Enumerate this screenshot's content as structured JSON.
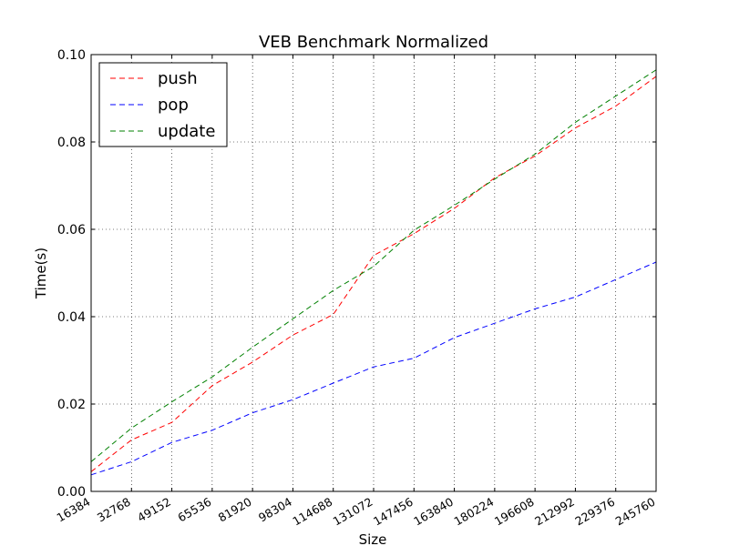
{
  "chart_data": {
    "type": "line",
    "title": "VEB Benchmark Normalized",
    "xlabel": "Size",
    "ylabel": "Time(s)",
    "x": [
      16384,
      32768,
      49152,
      65536,
      81920,
      98304,
      114688,
      131072,
      147456,
      163840,
      180224,
      196608,
      212992,
      229376,
      245760
    ],
    "x_tick_labels": [
      "16384",
      "32768",
      "49152",
      "65536",
      "81920",
      "98304",
      "114688",
      "131072",
      "147456",
      "163840",
      "180224",
      "196608",
      "212992",
      "229376",
      "245760"
    ],
    "xlim": [
      16384,
      245760
    ],
    "ylim": [
      0.0,
      0.1
    ],
    "y_ticks": [
      0.0,
      0.02,
      0.04,
      0.06,
      0.08,
      0.1
    ],
    "y_tick_labels": [
      "0.00",
      "0.02",
      "0.04",
      "0.06",
      "0.08",
      "0.10"
    ],
    "grid": true,
    "legend_position": "top-left",
    "series": [
      {
        "name": "push",
        "color": "#ff0000",
        "values": [
          0.0045,
          0.0118,
          0.0158,
          0.0242,
          0.0296,
          0.0358,
          0.0405,
          0.054,
          0.059,
          0.0648,
          0.0718,
          0.0768,
          0.0832,
          0.0882,
          0.095
        ]
      },
      {
        "name": "pop",
        "color": "#0000ff",
        "values": [
          0.0038,
          0.0068,
          0.0112,
          0.014,
          0.018,
          0.021,
          0.0248,
          0.0285,
          0.0305,
          0.0352,
          0.0385,
          0.0418,
          0.0445,
          0.0485,
          0.0525
        ]
      },
      {
        "name": "update",
        "color": "#008000",
        "values": [
          0.0068,
          0.0145,
          0.0205,
          0.0262,
          0.033,
          0.0395,
          0.046,
          0.0515,
          0.0598,
          0.0655,
          0.0715,
          0.0772,
          0.0845,
          0.0905,
          0.0965
        ]
      }
    ]
  }
}
